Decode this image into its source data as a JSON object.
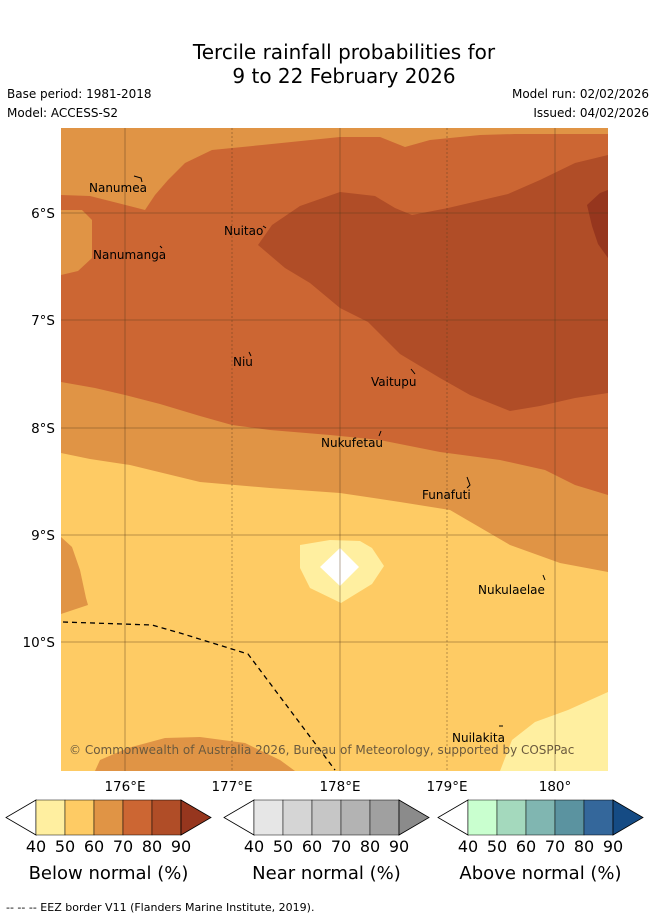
{
  "title": {
    "line1": "Tercile rainfall probabilities for",
    "line2": "9 to 22 February 2026"
  },
  "meta": {
    "base_period": "Base period: 1981-2018",
    "model": "Model: ACCESS-S2",
    "model_run": "Model run: 02/02/2026",
    "issued": "Issued: 04/02/2026"
  },
  "map": {
    "lat_labels": [
      "6°S",
      "7°S",
      "8°S",
      "9°S",
      "10°S"
    ],
    "lon_labels": [
      "176°E",
      "177°E",
      "178°E",
      "179°E",
      "180°"
    ],
    "places": {
      "nanumea": "Nanumea",
      "nanumanga": "Nanumanga",
      "nuitao": "Nuitao",
      "niu": "Niu",
      "vaitupu": "Vaitupu",
      "nukufetau": "Nukufetau",
      "funafuti": "Funafuti",
      "nukulaelae": "Nukulaelae",
      "nuilakita": "Nuilakita"
    },
    "copyright": "© Commonwealth of Australia 2026, Bureau of Meteorology, supported by COSPPac"
  },
  "colorbars": {
    "below": {
      "title": "Below normal (%)",
      "ticks": [
        "40",
        "50",
        "60",
        "70",
        "80",
        "90"
      ],
      "colors": [
        "#ffffff",
        "#ffefa0",
        "#fecb64",
        "#e09445",
        "#cc6633",
        "#b04d27",
        "#96361e"
      ]
    },
    "near": {
      "title": "Near normal (%)",
      "ticks": [
        "40",
        "50",
        "60",
        "70",
        "80",
        "90"
      ],
      "colors": [
        "#ffffff",
        "#e6e6e6",
        "#d5d5d5",
        "#c6c6c6",
        "#b3b3b3",
        "#a0a0a0",
        "#8b8b8b"
      ]
    },
    "above": {
      "title": "Above normal (%)",
      "ticks": [
        "40",
        "50",
        "60",
        "70",
        "80",
        "90"
      ],
      "colors": [
        "#ffffff",
        "#c9ffcf",
        "#a4d9bd",
        "#80b6b1",
        "#5b93a0",
        "#34679b",
        "#154b84"
      ]
    }
  },
  "footer": "-- -- -- EEZ border V11 (Flanders Marine Institute, 2019)."
}
